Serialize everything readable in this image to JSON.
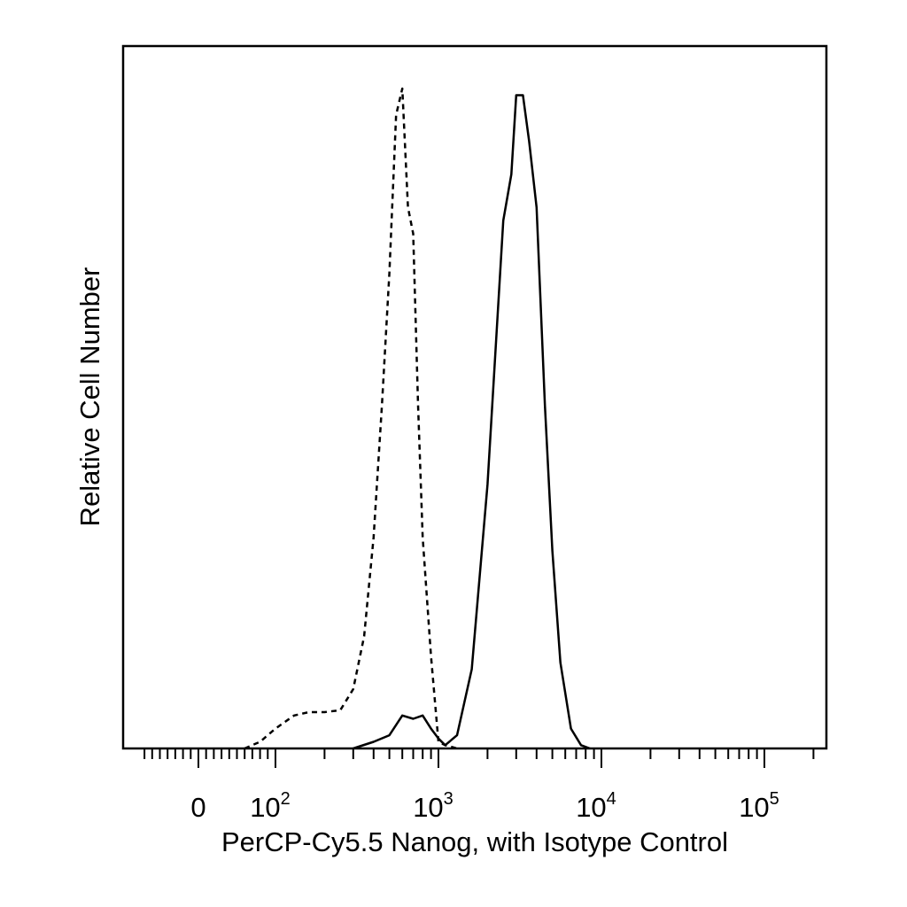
{
  "chart_data": {
    "type": "line",
    "title": "",
    "xlabel": "PerCP-Cy5.5 Nanog, with Isotype Control",
    "ylabel": "Relative Cell Number",
    "x_scale": "biexponential",
    "xlim": [
      -70,
      250000
    ],
    "ylim": [
      0,
      1
    ],
    "grid": false,
    "legend": "none",
    "x_tick_labels": [
      {
        "base": "0",
        "exp": "",
        "value": 0
      },
      {
        "base": "10",
        "exp": "2",
        "value": 100
      },
      {
        "base": "10",
        "exp": "3",
        "value": 1000
      },
      {
        "base": "10",
        "exp": "4",
        "value": 10000
      },
      {
        "base": "10",
        "exp": "5",
        "value": 100000
      }
    ],
    "series": [
      {
        "line_style": "dashed",
        "color": "#000000",
        "x": [
          60,
          80,
          100,
          130,
          160,
          200,
          250,
          300,
          350,
          400,
          450,
          500,
          550,
          600,
          650,
          700,
          750,
          800,
          900,
          1000,
          1100,
          1300
        ],
        "y": [
          0.0,
          0.01,
          0.03,
          0.05,
          0.055,
          0.055,
          0.058,
          0.09,
          0.17,
          0.32,
          0.52,
          0.72,
          0.96,
          1.0,
          0.82,
          0.78,
          0.52,
          0.32,
          0.14,
          0.01,
          0.005,
          0.0
        ]
      },
      {
        "line_style": "solid",
        "color": "#000000",
        "x": [
          300,
          400,
          500,
          600,
          700,
          800,
          900,
          1000,
          1100,
          1300,
          1600,
          2000,
          2500,
          2800,
          3000,
          3300,
          3600,
          4000,
          4500,
          5000,
          5600,
          6500,
          7500,
          8500
        ],
        "y": [
          0.0,
          0.01,
          0.02,
          0.05,
          0.045,
          0.05,
          0.03,
          0.015,
          0.005,
          0.02,
          0.12,
          0.4,
          0.8,
          0.87,
          0.99,
          0.99,
          0.92,
          0.82,
          0.52,
          0.3,
          0.13,
          0.03,
          0.005,
          0.0
        ]
      }
    ]
  }
}
